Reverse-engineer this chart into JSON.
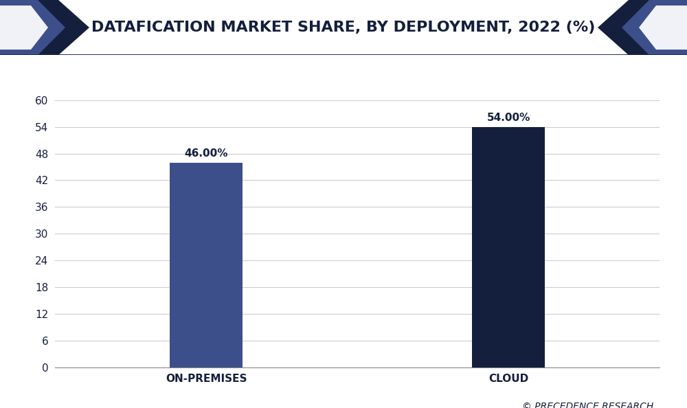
{
  "title": "DATAFICATION MARKET SHARE, BY DEPLOYMENT, 2022 (%)",
  "categories": [
    "ON-PREMISES",
    "CLOUD"
  ],
  "values": [
    46.0,
    54.0
  ],
  "bar_colors": [
    "#3d4f8a",
    "#141f3d"
  ],
  "bar_labels": [
    "46.00%",
    "54.00%"
  ],
  "ylim": [
    0,
    66
  ],
  "yticks": [
    0,
    6,
    12,
    18,
    24,
    30,
    36,
    42,
    48,
    54,
    60
  ],
  "background_color": "#ffffff",
  "plot_bg_color": "#ffffff",
  "grid_color": "#cccccc",
  "title_color": "#141f3d",
  "label_color": "#141f3d",
  "tick_color": "#141f3d",
  "watermark": "© PRECEDENCE RESEARCH",
  "title_fontsize": 16,
  "label_fontsize": 11,
  "bar_label_fontsize": 11,
  "watermark_fontsize": 10,
  "header_bg_color": "#f0f2f7",
  "header_accent_dark": "#141f3d",
  "header_accent_mid": "#3d4f8a",
  "bar_width": 0.12,
  "x_positions": [
    0.25,
    0.75
  ],
  "border_color": "#141f3d"
}
